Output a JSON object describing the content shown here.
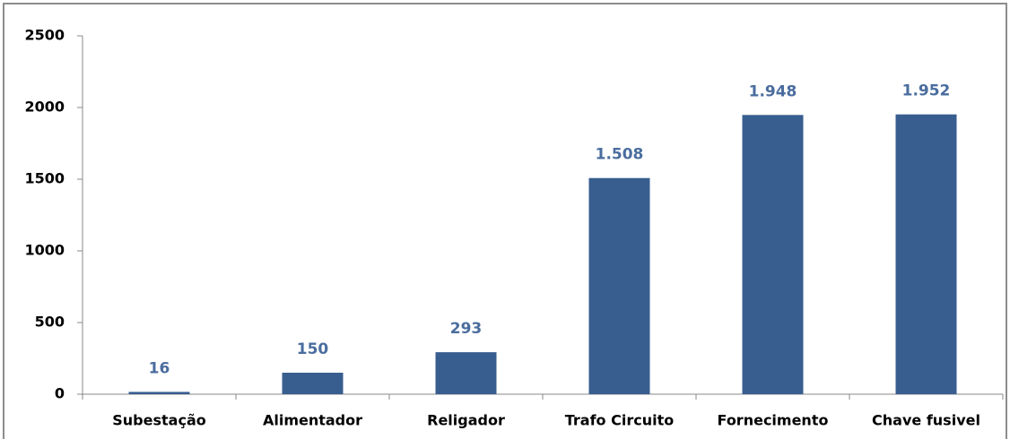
{
  "chart_data": {
    "type": "bar",
    "categories": [
      "Subestação",
      "Alimentador",
      "Religador",
      "Trafo Circuito",
      "Fornecimento",
      "Chave fusivel"
    ],
    "values": [
      16,
      150,
      293,
      1508,
      1948,
      1952
    ],
    "value_labels": [
      "16",
      "150",
      "293",
      "1.508",
      "1.948",
      "1.952"
    ],
    "color": "#385e8f",
    "ylim": [
      0,
      2500
    ],
    "yticks": [
      0,
      500,
      1000,
      1500,
      2000,
      2500
    ],
    "grid": false
  }
}
